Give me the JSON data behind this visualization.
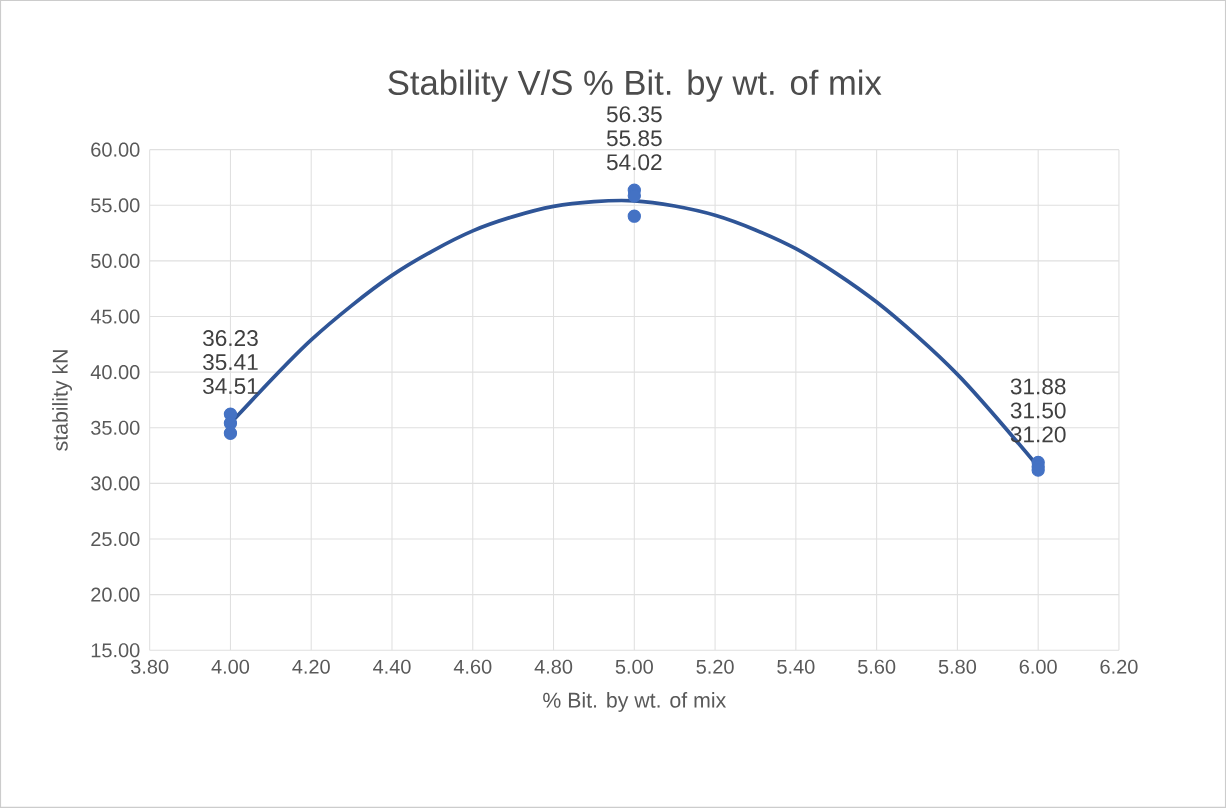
{
  "chart_data": {
    "type": "scatter",
    "title": "Stability V/S % Bit. by wt. of mix",
    "xlabel": "% Bit. by wt. of mix",
    "ylabel": "stability kN",
    "xlim": [
      3.8,
      6.2
    ],
    "xticks": [
      {
        "value": 3.8,
        "label": "3.80"
      },
      {
        "value": 4.0,
        "label": "4.00"
      },
      {
        "value": 4.2,
        "label": "4.20"
      },
      {
        "value": 4.4,
        "label": "4.40"
      },
      {
        "value": 4.6,
        "label": "4.60"
      },
      {
        "value": 4.8,
        "label": "4.80"
      },
      {
        "value": 5.0,
        "label": "5.00"
      },
      {
        "value": 5.2,
        "label": "5.20"
      },
      {
        "value": 5.4,
        "label": "5.40"
      },
      {
        "value": 5.6,
        "label": "5.60"
      },
      {
        "value": 5.8,
        "label": "5.80"
      },
      {
        "value": 6.0,
        "label": "6.00"
      },
      {
        "value": 6.2,
        "label": "6.20"
      }
    ],
    "ylim": [
      15,
      60
    ],
    "yticks": [
      {
        "value": 15,
        "label": "15.00"
      },
      {
        "value": 20,
        "label": "20.00"
      },
      {
        "value": 25,
        "label": "25.00"
      },
      {
        "value": 30,
        "label": "30.00"
      },
      {
        "value": 35,
        "label": "35.00"
      },
      {
        "value": 40,
        "label": "40.00"
      },
      {
        "value": 45,
        "label": "45.00"
      },
      {
        "value": 50,
        "label": "50.00"
      },
      {
        "value": 55,
        "label": "55.00"
      },
      {
        "value": 60,
        "label": "60.00"
      }
    ],
    "grid": true,
    "marker": "circle",
    "series": [
      {
        "color": "#4472c4",
        "x": [
          4,
          4,
          4,
          5,
          5,
          5,
          6,
          6,
          6
        ],
        "values": [
          36.23,
          35.41,
          34.51,
          56.35,
          55.85,
          54.02,
          31.88,
          31.5,
          31.2
        ],
        "value_labels": [
          "36.23",
          "35.41",
          "34.51",
          "56.35",
          "55.85",
          "54.02",
          "31.88",
          "31.50",
          "31.20"
        ]
      },
      {
        "type": "line",
        "color": "#2f5597",
        "marker": "none",
        "x": [
          4.0,
          4.2,
          4.4,
          4.6,
          4.8,
          5.0,
          5.2,
          5.4,
          5.6,
          5.8,
          6.0
        ],
        "values": [
          35.4,
          42.9,
          48.7,
          52.7,
          54.9,
          55.4,
          54.1,
          51.1,
          46.3,
          39.8,
          31.5
        ]
      }
    ]
  }
}
